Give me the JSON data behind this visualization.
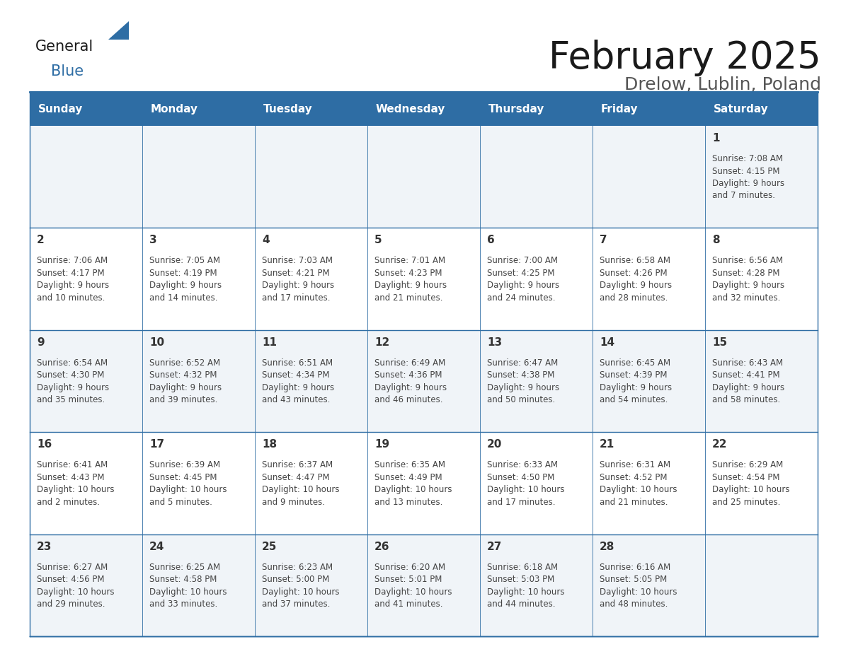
{
  "title": "February 2025",
  "subtitle": "Drelow, Lublin, Poland",
  "title_color": "#1a1a1a",
  "subtitle_color": "#555555",
  "header_bg_color": "#2e6da4",
  "header_text_color": "#ffffff",
  "cell_bg_white": "#ffffff",
  "cell_bg_gray": "#f0f4f8",
  "grid_color": "#2e6da4",
  "day_number_color": "#333333",
  "cell_text_color": "#444444",
  "days_of_week": [
    "Sunday",
    "Monday",
    "Tuesday",
    "Wednesday",
    "Thursday",
    "Friday",
    "Saturday"
  ],
  "weeks": [
    [
      {
        "day": null,
        "info": null
      },
      {
        "day": null,
        "info": null
      },
      {
        "day": null,
        "info": null
      },
      {
        "day": null,
        "info": null
      },
      {
        "day": null,
        "info": null
      },
      {
        "day": null,
        "info": null
      },
      {
        "day": "1",
        "info": "Sunrise: 7:08 AM\nSunset: 4:15 PM\nDaylight: 9 hours\nand 7 minutes."
      }
    ],
    [
      {
        "day": "2",
        "info": "Sunrise: 7:06 AM\nSunset: 4:17 PM\nDaylight: 9 hours\nand 10 minutes."
      },
      {
        "day": "3",
        "info": "Sunrise: 7:05 AM\nSunset: 4:19 PM\nDaylight: 9 hours\nand 14 minutes."
      },
      {
        "day": "4",
        "info": "Sunrise: 7:03 AM\nSunset: 4:21 PM\nDaylight: 9 hours\nand 17 minutes."
      },
      {
        "day": "5",
        "info": "Sunrise: 7:01 AM\nSunset: 4:23 PM\nDaylight: 9 hours\nand 21 minutes."
      },
      {
        "day": "6",
        "info": "Sunrise: 7:00 AM\nSunset: 4:25 PM\nDaylight: 9 hours\nand 24 minutes."
      },
      {
        "day": "7",
        "info": "Sunrise: 6:58 AM\nSunset: 4:26 PM\nDaylight: 9 hours\nand 28 minutes."
      },
      {
        "day": "8",
        "info": "Sunrise: 6:56 AM\nSunset: 4:28 PM\nDaylight: 9 hours\nand 32 minutes."
      }
    ],
    [
      {
        "day": "9",
        "info": "Sunrise: 6:54 AM\nSunset: 4:30 PM\nDaylight: 9 hours\nand 35 minutes."
      },
      {
        "day": "10",
        "info": "Sunrise: 6:52 AM\nSunset: 4:32 PM\nDaylight: 9 hours\nand 39 minutes."
      },
      {
        "day": "11",
        "info": "Sunrise: 6:51 AM\nSunset: 4:34 PM\nDaylight: 9 hours\nand 43 minutes."
      },
      {
        "day": "12",
        "info": "Sunrise: 6:49 AM\nSunset: 4:36 PM\nDaylight: 9 hours\nand 46 minutes."
      },
      {
        "day": "13",
        "info": "Sunrise: 6:47 AM\nSunset: 4:38 PM\nDaylight: 9 hours\nand 50 minutes."
      },
      {
        "day": "14",
        "info": "Sunrise: 6:45 AM\nSunset: 4:39 PM\nDaylight: 9 hours\nand 54 minutes."
      },
      {
        "day": "15",
        "info": "Sunrise: 6:43 AM\nSunset: 4:41 PM\nDaylight: 9 hours\nand 58 minutes."
      }
    ],
    [
      {
        "day": "16",
        "info": "Sunrise: 6:41 AM\nSunset: 4:43 PM\nDaylight: 10 hours\nand 2 minutes."
      },
      {
        "day": "17",
        "info": "Sunrise: 6:39 AM\nSunset: 4:45 PM\nDaylight: 10 hours\nand 5 minutes."
      },
      {
        "day": "18",
        "info": "Sunrise: 6:37 AM\nSunset: 4:47 PM\nDaylight: 10 hours\nand 9 minutes."
      },
      {
        "day": "19",
        "info": "Sunrise: 6:35 AM\nSunset: 4:49 PM\nDaylight: 10 hours\nand 13 minutes."
      },
      {
        "day": "20",
        "info": "Sunrise: 6:33 AM\nSunset: 4:50 PM\nDaylight: 10 hours\nand 17 minutes."
      },
      {
        "day": "21",
        "info": "Sunrise: 6:31 AM\nSunset: 4:52 PM\nDaylight: 10 hours\nand 21 minutes."
      },
      {
        "day": "22",
        "info": "Sunrise: 6:29 AM\nSunset: 4:54 PM\nDaylight: 10 hours\nand 25 minutes."
      }
    ],
    [
      {
        "day": "23",
        "info": "Sunrise: 6:27 AM\nSunset: 4:56 PM\nDaylight: 10 hours\nand 29 minutes."
      },
      {
        "day": "24",
        "info": "Sunrise: 6:25 AM\nSunset: 4:58 PM\nDaylight: 10 hours\nand 33 minutes."
      },
      {
        "day": "25",
        "info": "Sunrise: 6:23 AM\nSunset: 5:00 PM\nDaylight: 10 hours\nand 37 minutes."
      },
      {
        "day": "26",
        "info": "Sunrise: 6:20 AM\nSunset: 5:01 PM\nDaylight: 10 hours\nand 41 minutes."
      },
      {
        "day": "27",
        "info": "Sunrise: 6:18 AM\nSunset: 5:03 PM\nDaylight: 10 hours\nand 44 minutes."
      },
      {
        "day": "28",
        "info": "Sunrise: 6:16 AM\nSunset: 5:05 PM\nDaylight: 10 hours\nand 48 minutes."
      },
      {
        "day": null,
        "info": null
      }
    ]
  ],
  "logo_color_general": "#1a1a1a",
  "logo_color_blue": "#2e6da4",
  "logo_triangle_color": "#2e6da4",
  "title_fontsize": 38,
  "subtitle_fontsize": 18,
  "header_fontsize": 11,
  "day_num_fontsize": 11,
  "cell_text_fontsize": 8.5
}
